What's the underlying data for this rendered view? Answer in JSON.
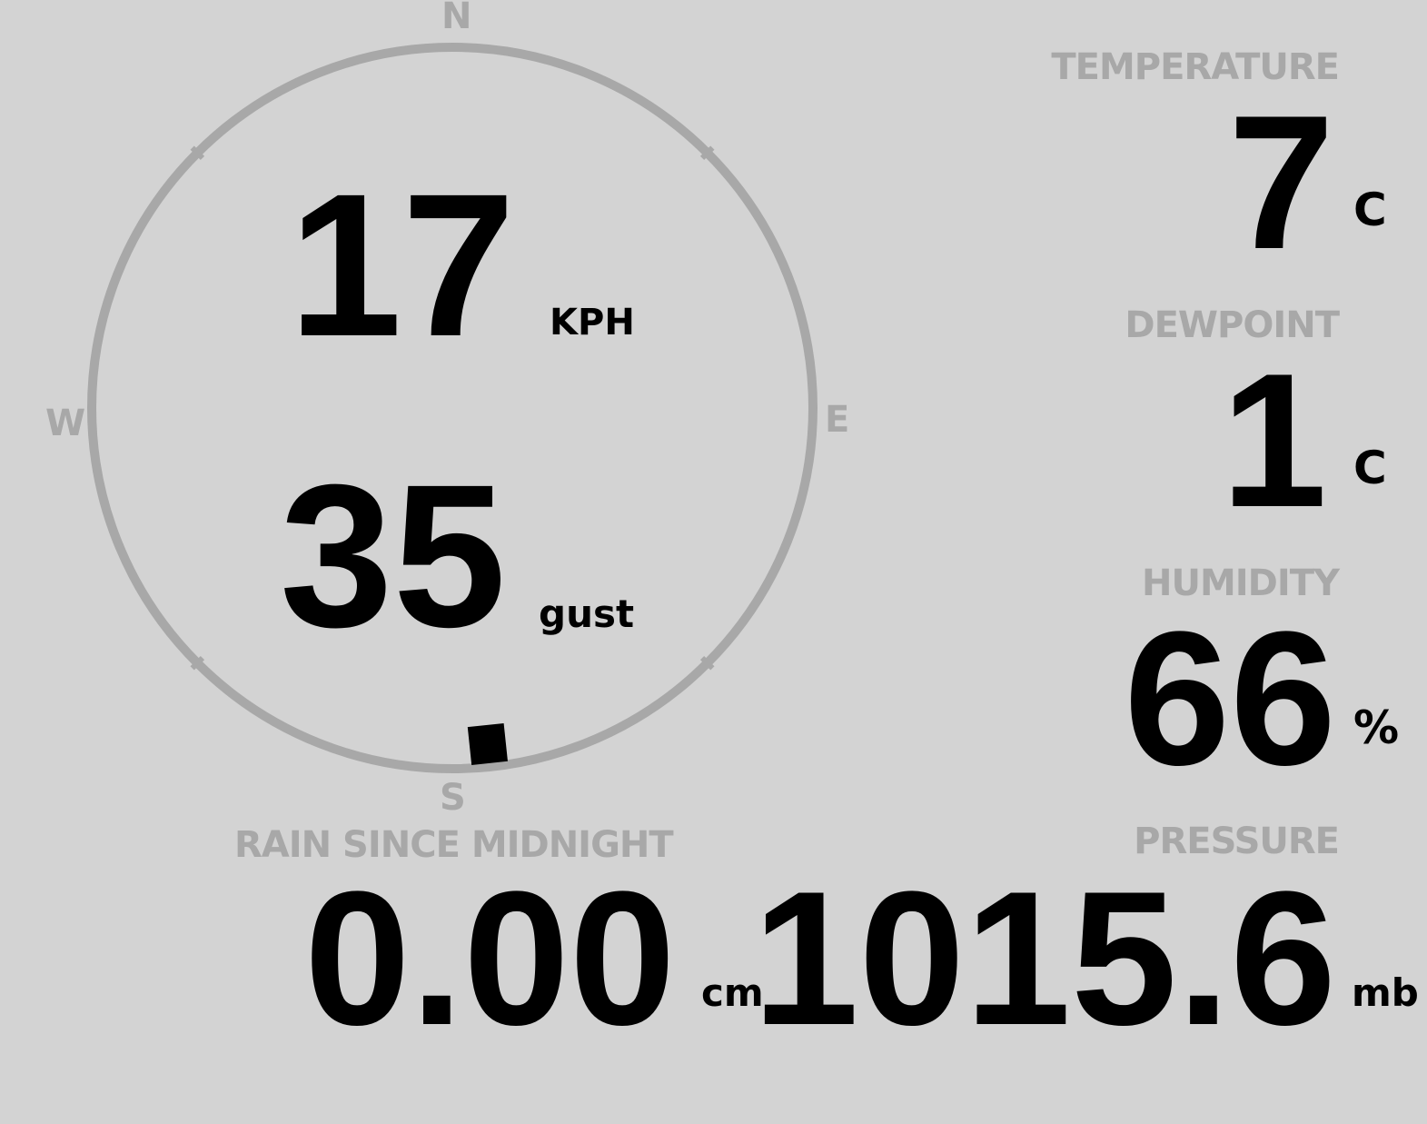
{
  "wind": {
    "speed": "17",
    "speed_unit": "KPH",
    "gust": "35",
    "gust_unit": "gust",
    "direction_deg": 174,
    "compass": {
      "n": "N",
      "e": "E",
      "s": "S",
      "w": "W"
    }
  },
  "temperature": {
    "label": "TEMPERATURE",
    "value": "7",
    "unit": "C"
  },
  "dewpoint": {
    "label": "DEWPOINT",
    "value": "1",
    "unit": "C"
  },
  "humidity": {
    "label": "HUMIDITY",
    "value": "66",
    "unit": "%"
  },
  "pressure": {
    "label": "PRESSURE",
    "value": "1015.6",
    "unit": "mb"
  },
  "rain": {
    "label": "RAIN SINCE MIDNIGHT",
    "value": "0.00",
    "unit": "cm"
  },
  "colors": {
    "background": "#d3d3d3",
    "muted": "#a8a8a8",
    "text": "#000000"
  }
}
